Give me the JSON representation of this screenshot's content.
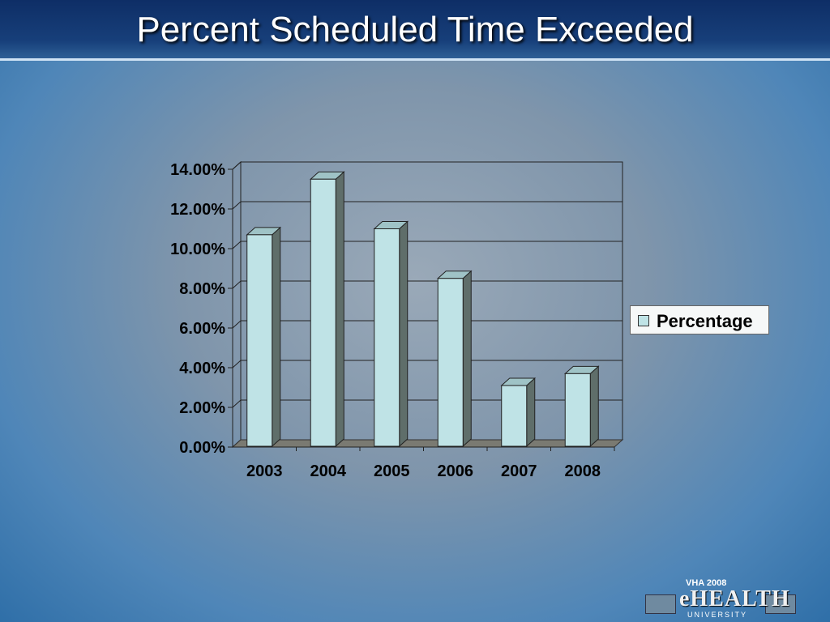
{
  "slide": {
    "title": "Percent Scheduled Time Exceeded"
  },
  "chart_data": {
    "type": "bar",
    "categories": [
      "2003",
      "2004",
      "2005",
      "2006",
      "2007",
      "2008"
    ],
    "series": [
      {
        "name": "Percentage",
        "values": [
          0.107,
          0.135,
          0.11,
          0.085,
          0.031,
          0.037
        ]
      }
    ],
    "ylim": [
      0,
      0.14
    ],
    "yticks": [
      "0.00%",
      "2.00%",
      "4.00%",
      "6.00%",
      "8.00%",
      "10.00%",
      "12.00%",
      "14.00%"
    ],
    "grid": true,
    "legend_position": "right",
    "colors": {
      "bar_face": "#bfe3e6",
      "bar_side": "#5f6e6a",
      "floor": "#7a7a72"
    }
  },
  "logo": {
    "top_text": "VHA 2008",
    "main_text": "eHEALTH",
    "sub_text": "UNIVERSITY"
  }
}
